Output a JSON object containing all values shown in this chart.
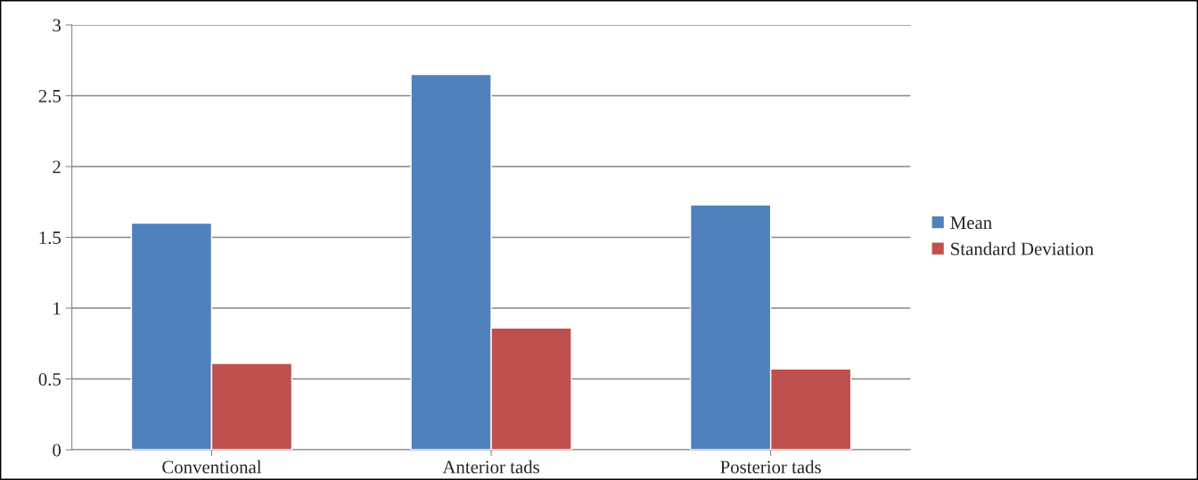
{
  "chart_data": {
    "type": "bar",
    "categories": [
      "Conventional",
      "Anterior tads",
      "Posterior tads"
    ],
    "series": [
      {
        "name": "Mean",
        "color": "#4f81bd",
        "values": [
          1.6,
          2.65,
          1.73
        ]
      },
      {
        "name": "Standard Deviation",
        "color": "#c0504d",
        "values": [
          0.61,
          0.86,
          0.57
        ]
      }
    ],
    "ylim": [
      0,
      3
    ],
    "yticks": [
      0,
      0.5,
      1,
      1.5,
      2,
      2.5,
      3
    ],
    "grid": "y",
    "legend": "right"
  }
}
